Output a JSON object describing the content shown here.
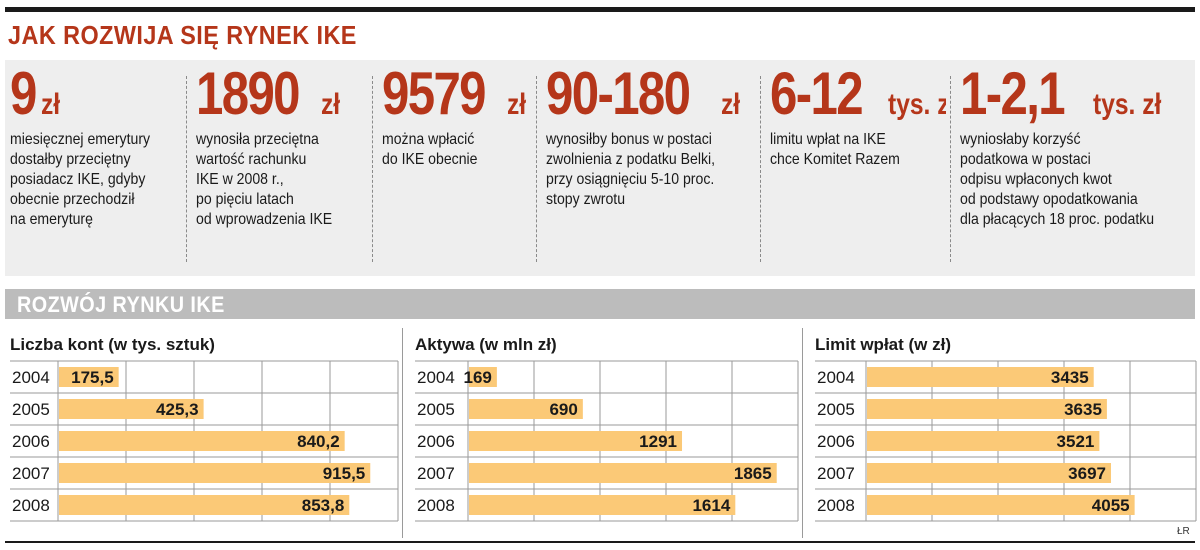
{
  "title": "JAK ROZWIJA SIĘ RYNEK IKE",
  "facts": [
    {
      "value": "9",
      "unit": "zł",
      "desc": "miesięcznej emerytury\ndostałby przeciętny\nposiadacz IKE, gdyby\nobecnie przechodził\nna emeryturę"
    },
    {
      "value": "1890",
      "unit": "zł",
      "desc": "wynosiła przeciętna\nwartość rachunku\nIKE w 2008 r.,\npo pięciu latach\nod wprowadzenia IKE"
    },
    {
      "value": "9579",
      "unit": "zł",
      "desc": "można wpłacić\ndo IKE obecnie"
    },
    {
      "value": "90-180",
      "unit": "zł",
      "desc": "wynosiłby bonus w postaci\nzwolnienia z podatku Belki,\nprzy osiągnięciu 5-10 proc.\nstopy zwrotu"
    },
    {
      "value": "6-12",
      "unit": "tys. zł",
      "desc": "limitu wpłat na IKE\nchce Komitet Razem"
    },
    {
      "value": "1-2,1",
      "unit": "tys. zł",
      "desc": "wyniosłaby korzyść\npodatkowa w postaci\nodpisu wpłaconych kwot\nod podstawy opodatkowania\ndla płacących 18 proc. podatku"
    }
  ],
  "section_title": "ROZWÓJ RYNKU IKE",
  "credit": "ŁR",
  "colors": {
    "accent": "#b5361a",
    "bar": "#fbc977",
    "band": "#eeeeee",
    "section_bar": "#bcbcbc"
  },
  "chart_data": [
    {
      "type": "bar",
      "orientation": "horizontal",
      "title": "Liczba kont (w tys. sztuk)",
      "categories": [
        "2004",
        "2005",
        "2006",
        "2007",
        "2008"
      ],
      "values": [
        175.5,
        425.3,
        840.2,
        915.5,
        853.8
      ],
      "labels": [
        "175,5",
        "425,3",
        "840,2",
        "915,5",
        "853,8"
      ],
      "xlim": [
        0,
        1000
      ],
      "grid": true
    },
    {
      "type": "bar",
      "orientation": "horizontal",
      "title": "Aktywa (w mln zł)",
      "categories": [
        "2004",
        "2005",
        "2006",
        "2007",
        "2008"
      ],
      "values": [
        169,
        690,
        1291,
        1865,
        1614
      ],
      "labels": [
        "169",
        "690",
        "1291",
        "1865",
        "1614"
      ],
      "xlim": [
        0,
        2000
      ],
      "grid": true
    },
    {
      "type": "bar",
      "orientation": "horizontal",
      "title": "Limit wpłat (w zł)",
      "categories": [
        "2004",
        "2005",
        "2006",
        "2007",
        "2008"
      ],
      "values": [
        3435,
        3635,
        3521,
        3697,
        4055
      ],
      "labels": [
        "3435",
        "3635",
        "3521",
        "3697",
        "4055"
      ],
      "xlim": [
        0,
        5000
      ],
      "grid": true
    }
  ]
}
